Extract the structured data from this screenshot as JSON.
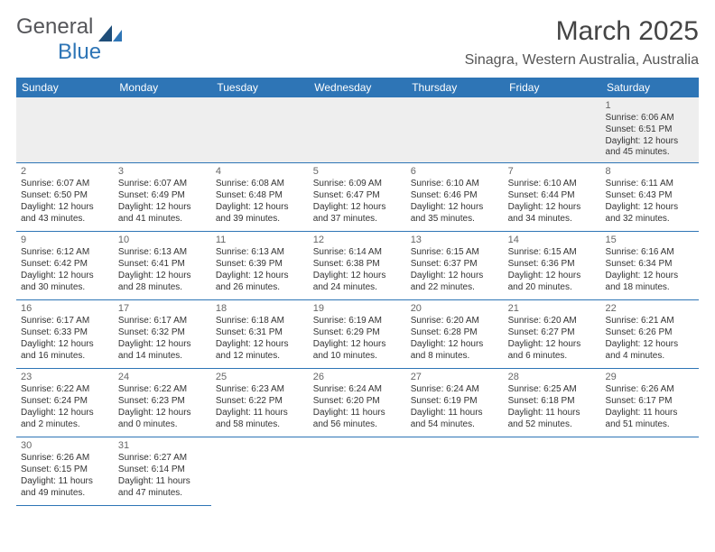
{
  "logo": {
    "general": "General",
    "blue": "Blue"
  },
  "title": "March 2025",
  "location": "Sinagra, Western Australia, Australia",
  "colors": {
    "header_bg": "#2e75b6",
    "header_fg": "#ffffff",
    "grid_line": "#2e75b6",
    "blank_bg": "#eeeeee",
    "text": "#333333",
    "logo_gray": "#55565a",
    "logo_blue": "#2e75b6"
  },
  "days_of_week": [
    "Sunday",
    "Monday",
    "Tuesday",
    "Wednesday",
    "Thursday",
    "Friday",
    "Saturday"
  ],
  "weeks": [
    [
      null,
      null,
      null,
      null,
      null,
      null,
      {
        "n": "1",
        "sr": "Sunrise: 6:06 AM",
        "ss": "Sunset: 6:51 PM",
        "dl1": "Daylight: 12 hours",
        "dl2": "and 45 minutes."
      }
    ],
    [
      {
        "n": "2",
        "sr": "Sunrise: 6:07 AM",
        "ss": "Sunset: 6:50 PM",
        "dl1": "Daylight: 12 hours",
        "dl2": "and 43 minutes."
      },
      {
        "n": "3",
        "sr": "Sunrise: 6:07 AM",
        "ss": "Sunset: 6:49 PM",
        "dl1": "Daylight: 12 hours",
        "dl2": "and 41 minutes."
      },
      {
        "n": "4",
        "sr": "Sunrise: 6:08 AM",
        "ss": "Sunset: 6:48 PM",
        "dl1": "Daylight: 12 hours",
        "dl2": "and 39 minutes."
      },
      {
        "n": "5",
        "sr": "Sunrise: 6:09 AM",
        "ss": "Sunset: 6:47 PM",
        "dl1": "Daylight: 12 hours",
        "dl2": "and 37 minutes."
      },
      {
        "n": "6",
        "sr": "Sunrise: 6:10 AM",
        "ss": "Sunset: 6:46 PM",
        "dl1": "Daylight: 12 hours",
        "dl2": "and 35 minutes."
      },
      {
        "n": "7",
        "sr": "Sunrise: 6:10 AM",
        "ss": "Sunset: 6:44 PM",
        "dl1": "Daylight: 12 hours",
        "dl2": "and 34 minutes."
      },
      {
        "n": "8",
        "sr": "Sunrise: 6:11 AM",
        "ss": "Sunset: 6:43 PM",
        "dl1": "Daylight: 12 hours",
        "dl2": "and 32 minutes."
      }
    ],
    [
      {
        "n": "9",
        "sr": "Sunrise: 6:12 AM",
        "ss": "Sunset: 6:42 PM",
        "dl1": "Daylight: 12 hours",
        "dl2": "and 30 minutes."
      },
      {
        "n": "10",
        "sr": "Sunrise: 6:13 AM",
        "ss": "Sunset: 6:41 PM",
        "dl1": "Daylight: 12 hours",
        "dl2": "and 28 minutes."
      },
      {
        "n": "11",
        "sr": "Sunrise: 6:13 AM",
        "ss": "Sunset: 6:39 PM",
        "dl1": "Daylight: 12 hours",
        "dl2": "and 26 minutes."
      },
      {
        "n": "12",
        "sr": "Sunrise: 6:14 AM",
        "ss": "Sunset: 6:38 PM",
        "dl1": "Daylight: 12 hours",
        "dl2": "and 24 minutes."
      },
      {
        "n": "13",
        "sr": "Sunrise: 6:15 AM",
        "ss": "Sunset: 6:37 PM",
        "dl1": "Daylight: 12 hours",
        "dl2": "and 22 minutes."
      },
      {
        "n": "14",
        "sr": "Sunrise: 6:15 AM",
        "ss": "Sunset: 6:36 PM",
        "dl1": "Daylight: 12 hours",
        "dl2": "and 20 minutes."
      },
      {
        "n": "15",
        "sr": "Sunrise: 6:16 AM",
        "ss": "Sunset: 6:34 PM",
        "dl1": "Daylight: 12 hours",
        "dl2": "and 18 minutes."
      }
    ],
    [
      {
        "n": "16",
        "sr": "Sunrise: 6:17 AM",
        "ss": "Sunset: 6:33 PM",
        "dl1": "Daylight: 12 hours",
        "dl2": "and 16 minutes."
      },
      {
        "n": "17",
        "sr": "Sunrise: 6:17 AM",
        "ss": "Sunset: 6:32 PM",
        "dl1": "Daylight: 12 hours",
        "dl2": "and 14 minutes."
      },
      {
        "n": "18",
        "sr": "Sunrise: 6:18 AM",
        "ss": "Sunset: 6:31 PM",
        "dl1": "Daylight: 12 hours",
        "dl2": "and 12 minutes."
      },
      {
        "n": "19",
        "sr": "Sunrise: 6:19 AM",
        "ss": "Sunset: 6:29 PM",
        "dl1": "Daylight: 12 hours",
        "dl2": "and 10 minutes."
      },
      {
        "n": "20",
        "sr": "Sunrise: 6:20 AM",
        "ss": "Sunset: 6:28 PM",
        "dl1": "Daylight: 12 hours",
        "dl2": "and 8 minutes."
      },
      {
        "n": "21",
        "sr": "Sunrise: 6:20 AM",
        "ss": "Sunset: 6:27 PM",
        "dl1": "Daylight: 12 hours",
        "dl2": "and 6 minutes."
      },
      {
        "n": "22",
        "sr": "Sunrise: 6:21 AM",
        "ss": "Sunset: 6:26 PM",
        "dl1": "Daylight: 12 hours",
        "dl2": "and 4 minutes."
      }
    ],
    [
      {
        "n": "23",
        "sr": "Sunrise: 6:22 AM",
        "ss": "Sunset: 6:24 PM",
        "dl1": "Daylight: 12 hours",
        "dl2": "and 2 minutes."
      },
      {
        "n": "24",
        "sr": "Sunrise: 6:22 AM",
        "ss": "Sunset: 6:23 PM",
        "dl1": "Daylight: 12 hours",
        "dl2": "and 0 minutes."
      },
      {
        "n": "25",
        "sr": "Sunrise: 6:23 AM",
        "ss": "Sunset: 6:22 PM",
        "dl1": "Daylight: 11 hours",
        "dl2": "and 58 minutes."
      },
      {
        "n": "26",
        "sr": "Sunrise: 6:24 AM",
        "ss": "Sunset: 6:20 PM",
        "dl1": "Daylight: 11 hours",
        "dl2": "and 56 minutes."
      },
      {
        "n": "27",
        "sr": "Sunrise: 6:24 AM",
        "ss": "Sunset: 6:19 PM",
        "dl1": "Daylight: 11 hours",
        "dl2": "and 54 minutes."
      },
      {
        "n": "28",
        "sr": "Sunrise: 6:25 AM",
        "ss": "Sunset: 6:18 PM",
        "dl1": "Daylight: 11 hours",
        "dl2": "and 52 minutes."
      },
      {
        "n": "29",
        "sr": "Sunrise: 6:26 AM",
        "ss": "Sunset: 6:17 PM",
        "dl1": "Daylight: 11 hours",
        "dl2": "and 51 minutes."
      }
    ],
    [
      {
        "n": "30",
        "sr": "Sunrise: 6:26 AM",
        "ss": "Sunset: 6:15 PM",
        "dl1": "Daylight: 11 hours",
        "dl2": "and 49 minutes."
      },
      {
        "n": "31",
        "sr": "Sunrise: 6:27 AM",
        "ss": "Sunset: 6:14 PM",
        "dl1": "Daylight: 11 hours",
        "dl2": "and 47 minutes."
      },
      null,
      null,
      null,
      null,
      null
    ]
  ]
}
